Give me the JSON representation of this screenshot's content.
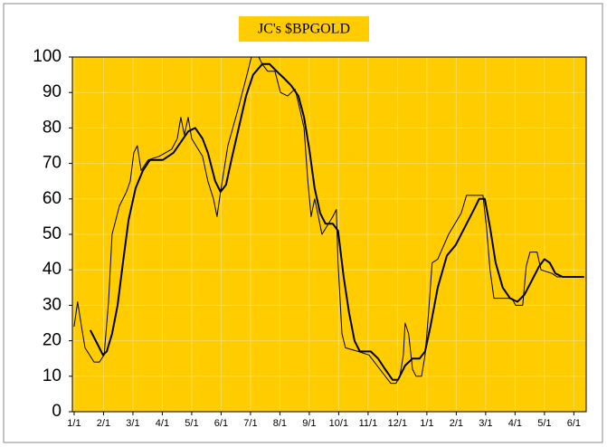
{
  "chart_data": {
    "type": "line",
    "title": "JC's $BPGOLD",
    "background": "#ffcc00",
    "grid": true,
    "xlim": [
      -0.06,
      17.42
    ],
    "ylim": [
      0,
      100
    ],
    "yticks": [
      0,
      10,
      20,
      30,
      40,
      50,
      60,
      70,
      80,
      90,
      100
    ],
    "xticks": [
      {
        "value": 0,
        "label": "1/1"
      },
      {
        "value": 1,
        "label": "2/1"
      },
      {
        "value": 2,
        "label": "3/1"
      },
      {
        "value": 3,
        "label": "4/1"
      },
      {
        "value": 4,
        "label": "5/1"
      },
      {
        "value": 5,
        "label": "6/1"
      },
      {
        "value": 6,
        "label": "7/1"
      },
      {
        "value": 7,
        "label": "8/1"
      },
      {
        "value": 8,
        "label": "9/1"
      },
      {
        "value": 9,
        "label": "10/1"
      },
      {
        "value": 10,
        "label": "11/1"
      },
      {
        "value": 11,
        "label": "12/1"
      },
      {
        "value": 12,
        "label": "1/1"
      },
      {
        "value": 13,
        "label": "2/1"
      },
      {
        "value": 14,
        "label": "3/1"
      },
      {
        "value": 15,
        "label": "4/1"
      },
      {
        "value": 16,
        "label": "5/1"
      },
      {
        "value": 17,
        "label": "6/1"
      }
    ],
    "series": [
      {
        "color": "#000000",
        "width": 1,
        "x": [
          0.0,
          0.12,
          0.25,
          0.37,
          0.68,
          0.86,
          1.02,
          1.17,
          1.29,
          1.54,
          1.78,
          1.91,
          2.03,
          2.15,
          2.28,
          2.52,
          2.89,
          3.32,
          3.51,
          3.63,
          3.75,
          3.88,
          4.0,
          4.37,
          4.55,
          4.74,
          4.86,
          4.98,
          5.23,
          5.6,
          5.91,
          6.03,
          6.28,
          6.4,
          6.58,
          6.83,
          7.02,
          7.26,
          7.51,
          7.63,
          7.82,
          7.94,
          8.06,
          8.18,
          8.31,
          8.43,
          8.8,
          8.92,
          8.98,
          9.11,
          9.23,
          9.66,
          10.03,
          10.4,
          10.77,
          10.95,
          11.08,
          11.2,
          11.26,
          11.38,
          11.51,
          11.63,
          11.82,
          11.94,
          12.06,
          12.18,
          12.37,
          12.74,
          13.17,
          13.35,
          13.91,
          14.03,
          14.15,
          14.28,
          14.89,
          15.02,
          15.26,
          15.38,
          15.51,
          15.75,
          15.88,
          16.25,
          16.43,
          17.35
        ],
        "values": [
          24,
          31,
          24,
          18,
          14,
          14,
          16,
          31,
          50,
          58,
          62,
          65,
          73,
          75,
          68,
          71,
          72,
          74,
          77,
          83,
          78,
          83,
          77,
          72,
          65,
          60,
          55,
          62,
          75,
          86,
          96,
          100,
          100,
          98,
          96,
          96,
          90,
          89,
          91,
          87,
          80,
          66,
          55,
          60,
          55,
          50,
          55,
          57,
          42,
          22,
          18,
          17,
          16,
          12,
          8,
          8,
          10,
          16,
          25,
          22,
          12,
          10,
          10,
          16,
          28,
          42,
          43,
          50,
          56,
          61,
          61,
          52,
          40,
          32,
          32,
          30,
          30,
          41,
          45,
          45,
          40,
          39,
          38,
          38
        ]
      },
      {
        "color": "#000000",
        "width": 2,
        "x": [
          0.55,
          0.8,
          0.98,
          1.11,
          1.29,
          1.48,
          1.66,
          1.85,
          2.09,
          2.34,
          2.58,
          2.77,
          3.02,
          3.38,
          3.63,
          3.88,
          4.12,
          4.37,
          4.55,
          4.8,
          4.98,
          5.17,
          5.35,
          5.6,
          5.85,
          6.09,
          6.4,
          6.65,
          6.89,
          7.14,
          7.38,
          7.63,
          7.82,
          8.0,
          8.18,
          8.37,
          8.55,
          8.8,
          8.98,
          9.17,
          9.35,
          9.54,
          9.72,
          10.09,
          10.34,
          10.58,
          10.83,
          11.02,
          11.26,
          11.51,
          11.75,
          11.94,
          12.12,
          12.37,
          12.68,
          12.98,
          13.29,
          13.6,
          13.78,
          13.97,
          14.15,
          14.34,
          14.58,
          14.83,
          15.08,
          15.32,
          15.57,
          15.82,
          16.0,
          16.18,
          16.37,
          16.62,
          17.35
        ],
        "values": [
          23,
          19,
          16,
          17,
          22,
          30,
          42,
          54,
          63,
          68,
          71,
          71,
          71,
          73,
          76,
          79,
          80,
          77,
          73,
          65,
          62,
          64,
          71,
          80,
          89,
          95,
          98,
          98,
          96,
          94,
          92,
          89,
          83,
          74,
          63,
          56,
          53,
          53,
          51,
          38,
          28,
          20,
          17,
          17,
          15,
          12,
          9,
          9,
          13,
          15,
          15,
          17,
          24,
          35,
          44,
          47,
          52,
          57,
          60,
          60,
          52,
          42,
          35,
          32,
          31,
          33,
          37,
          41,
          43,
          42,
          39,
          38,
          38
        ]
      }
    ]
  }
}
